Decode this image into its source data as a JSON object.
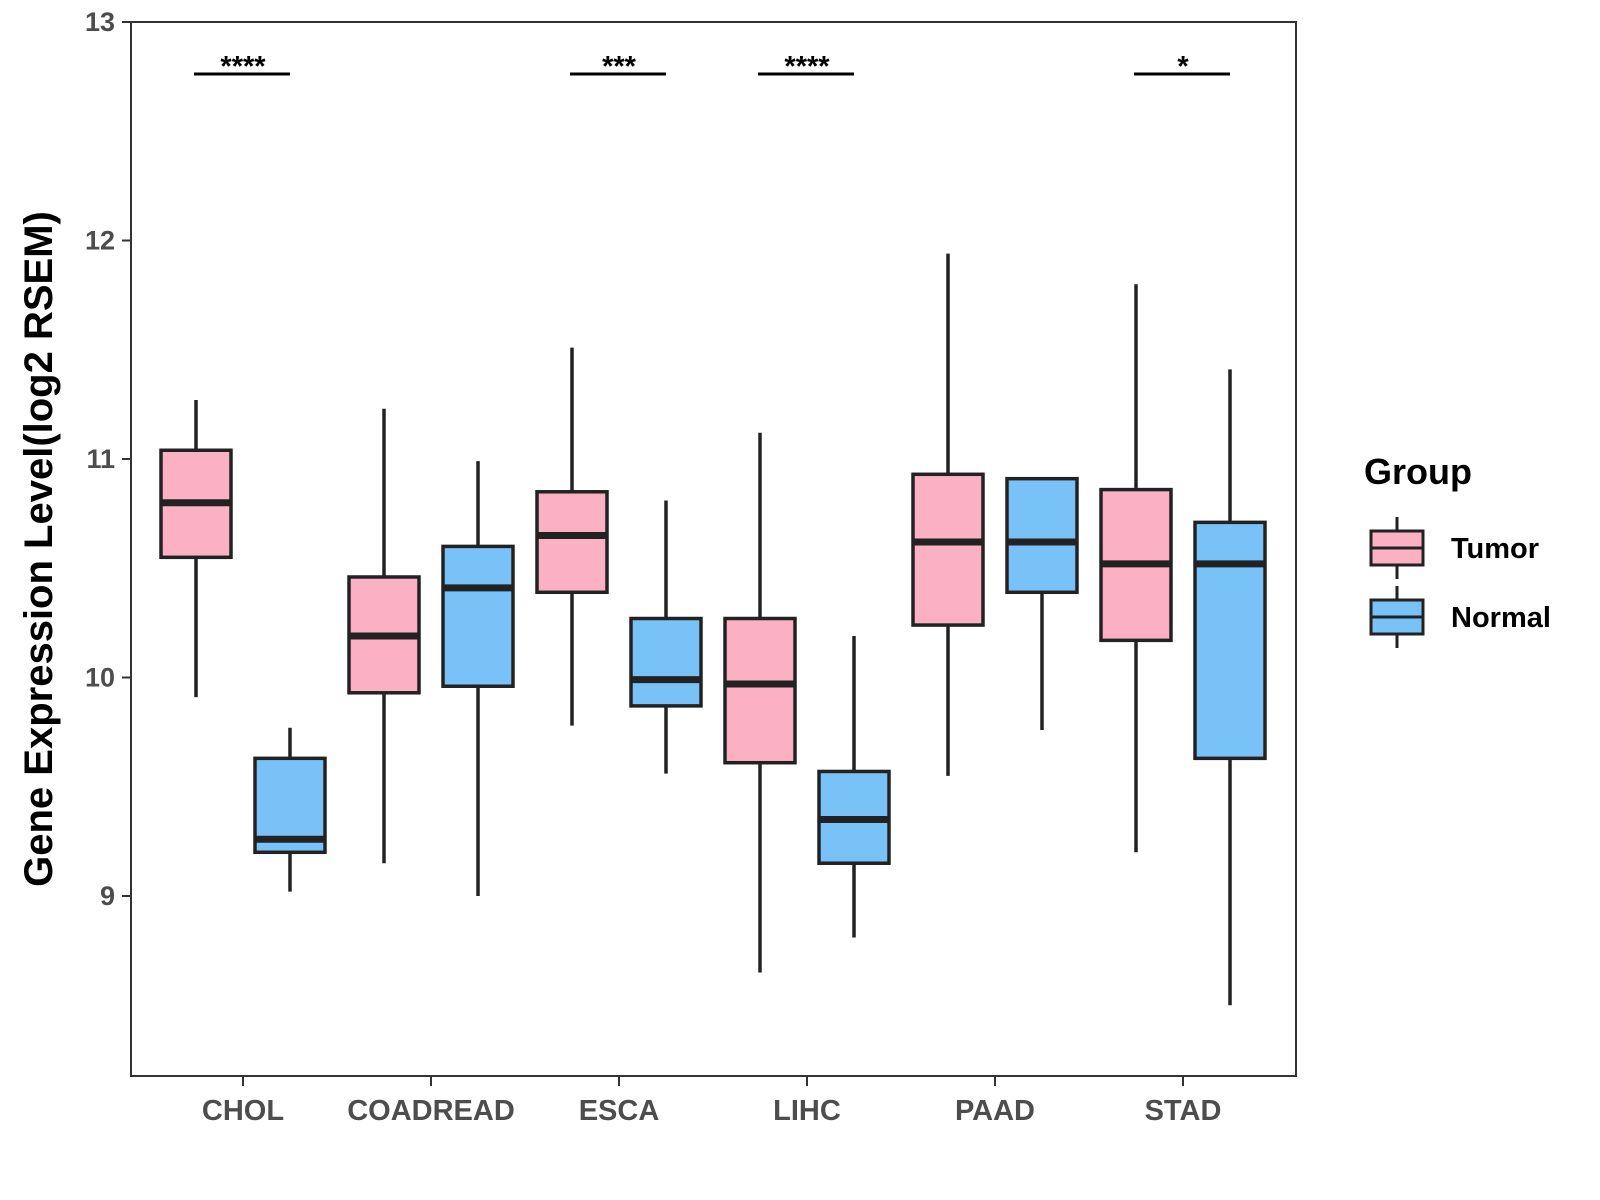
{
  "chart_data": {
    "type": "boxplot",
    "title": "",
    "xlabel": "",
    "ylabel": "Gene Expression Level(log2 RSEM)",
    "ylim": [
      8.2,
      13
    ],
    "yticks": [
      "9",
      "10",
      "11",
      "12",
      "13"
    ],
    "categories": [
      "CHOL",
      "COADREAD",
      "ESCA",
      "LIHC",
      "PAAD",
      "STAD"
    ],
    "legend": {
      "title": "Group",
      "position": "right",
      "entries": [
        {
          "name": "Tumor",
          "color": "#FBB1C3"
        },
        {
          "name": "Normal",
          "color": "#78C2F8"
        }
      ]
    },
    "series": [
      {
        "name": "Tumor",
        "color": "#FBB1C3",
        "boxes": [
          {
            "min": 9.91,
            "q1": 10.55,
            "median": 10.8,
            "q3": 11.04,
            "max": 11.27
          },
          {
            "min": 9.15,
            "q1": 9.93,
            "median": 10.19,
            "q3": 10.46,
            "max": 11.23
          },
          {
            "min": 9.78,
            "q1": 10.39,
            "median": 10.65,
            "q3": 10.85,
            "max": 11.51
          },
          {
            "min": 8.65,
            "q1": 9.61,
            "median": 9.97,
            "q3": 10.27,
            "max": 11.12
          },
          {
            "min": 9.55,
            "q1": 10.24,
            "median": 10.62,
            "q3": 10.93,
            "max": 11.94
          },
          {
            "min": 9.2,
            "q1": 10.17,
            "median": 10.52,
            "q3": 10.86,
            "max": 11.8
          }
        ]
      },
      {
        "name": "Normal",
        "color": "#78C2F8",
        "boxes": [
          {
            "min": 9.02,
            "q1": 9.2,
            "median": 9.26,
            "q3": 9.63,
            "max": 9.77
          },
          {
            "min": 9.0,
            "q1": 9.96,
            "median": 10.41,
            "q3": 10.6,
            "max": 10.99
          },
          {
            "min": 9.56,
            "q1": 9.87,
            "median": 9.99,
            "q3": 10.27,
            "max": 10.81
          },
          {
            "min": 8.81,
            "q1": 9.15,
            "median": 9.35,
            "q3": 9.57,
            "max": 10.19
          },
          {
            "min": 9.76,
            "q1": 10.39,
            "median": 10.62,
            "q3": 10.91,
            "max": 10.91
          },
          {
            "min": 8.5,
            "q1": 9.63,
            "median": 10.52,
            "q3": 10.71,
            "max": 11.41
          }
        ]
      }
    ],
    "significance": [
      {
        "category": "CHOL",
        "label": "****"
      },
      {
        "category": "ESCA",
        "label": "***"
      },
      {
        "category": "LIHC",
        "label": "****"
      },
      {
        "category": "STAD",
        "label": "*"
      }
    ]
  }
}
